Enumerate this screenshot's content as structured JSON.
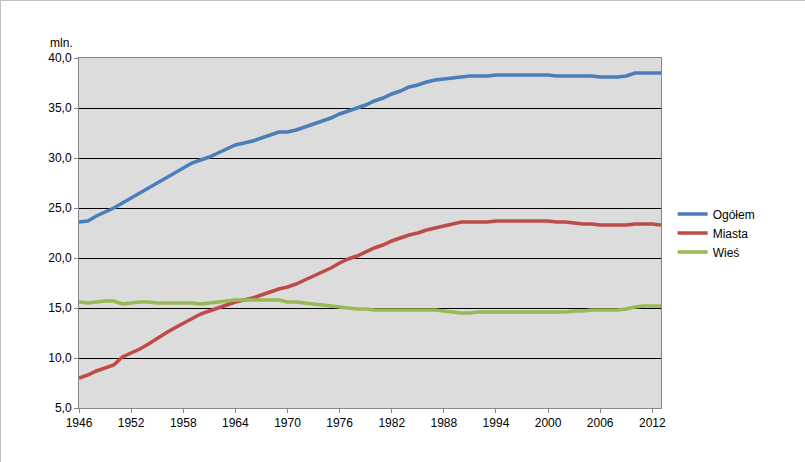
{
  "chart_data": {
    "type": "line",
    "ylabel": "mln.",
    "x": [
      1946,
      1947,
      1948,
      1949,
      1950,
      1951,
      1952,
      1953,
      1954,
      1955,
      1956,
      1957,
      1958,
      1959,
      1960,
      1961,
      1962,
      1963,
      1964,
      1965,
      1966,
      1967,
      1968,
      1969,
      1970,
      1971,
      1972,
      1973,
      1974,
      1975,
      1976,
      1977,
      1978,
      1979,
      1980,
      1981,
      1982,
      1983,
      1984,
      1985,
      1986,
      1987,
      1988,
      1989,
      1990,
      1991,
      1992,
      1993,
      1994,
      1995,
      1996,
      1997,
      1998,
      1999,
      2000,
      2001,
      2002,
      2003,
      2004,
      2005,
      2006,
      2007,
      2008,
      2009,
      2010,
      2011,
      2012,
      2013
    ],
    "series": [
      {
        "name": "Ogółem",
        "color": "#4a7ebb",
        "values": [
          23.6,
          23.7,
          24.2,
          24.6,
          25.0,
          25.5,
          26.0,
          26.5,
          27.0,
          27.5,
          28.1,
          28.5,
          29.0,
          29.5,
          29.8,
          30.1,
          30.5,
          30.9,
          31.3,
          31.5,
          31.7,
          32.0,
          32.3,
          32.6,
          32.6,
          32.8,
          33.1,
          33.4,
          33.7,
          34.0,
          34.4,
          34.7,
          35.0,
          35.3,
          35.7,
          36.0,
          36.4,
          36.7,
          37.1,
          37.3,
          37.6,
          37.8,
          37.9,
          38.0,
          38.1,
          38.2,
          38.2,
          38.2,
          38.3,
          38.3,
          38.3,
          38.3,
          38.3,
          38.3,
          38.3,
          38.2,
          38.2,
          38.2,
          38.2,
          38.2,
          38.1,
          38.1,
          38.1,
          38.2,
          38.5,
          38.5,
          38.5,
          38.5
        ]
      },
      {
        "name": "Miasta",
        "color": "#be4b48",
        "values": [
          8.0,
          8.3,
          8.7,
          9.0,
          9.3,
          10.1,
          10.5,
          10.9,
          11.4,
          12.0,
          12.5,
          13.0,
          13.5,
          14.0,
          14.4,
          14.7,
          15.0,
          15.3,
          15.6,
          15.8,
          16.0,
          16.3,
          16.6,
          16.9,
          17.1,
          17.4,
          17.8,
          18.2,
          18.6,
          19.0,
          19.5,
          19.9,
          20.2,
          20.6,
          21.0,
          21.3,
          21.7,
          22.0,
          22.3,
          22.5,
          22.8,
          23.0,
          23.2,
          23.4,
          23.6,
          23.6,
          23.6,
          23.6,
          23.7,
          23.7,
          23.7,
          23.7,
          23.7,
          23.7,
          23.7,
          23.6,
          23.6,
          23.5,
          23.4,
          23.4,
          23.3,
          23.3,
          23.3,
          23.3,
          23.4,
          23.4,
          23.4,
          23.3
        ]
      },
      {
        "name": "Wieś",
        "color": "#98b954",
        "values": [
          15.6,
          15.5,
          15.6,
          15.7,
          15.7,
          15.4,
          15.5,
          15.6,
          15.6,
          15.5,
          15.5,
          15.5,
          15.5,
          15.5,
          15.4,
          15.5,
          15.6,
          15.7,
          15.8,
          15.8,
          15.8,
          15.8,
          15.8,
          15.8,
          15.6,
          15.6,
          15.5,
          15.4,
          15.3,
          15.2,
          15.1,
          15.0,
          14.9,
          14.9,
          14.8,
          14.8,
          14.8,
          14.8,
          14.8,
          14.8,
          14.8,
          14.8,
          14.7,
          14.6,
          14.5,
          14.5,
          14.6,
          14.6,
          14.6,
          14.6,
          14.6,
          14.6,
          14.6,
          14.6,
          14.6,
          14.6,
          14.6,
          14.7,
          14.7,
          14.8,
          14.8,
          14.8,
          14.8,
          14.9,
          15.1,
          15.2,
          15.2,
          15.2
        ]
      }
    ],
    "xlim": [
      1946,
      2013
    ],
    "xticks": [
      1946,
      1952,
      1958,
      1964,
      1970,
      1976,
      1982,
      1988,
      1994,
      2000,
      2006,
      2012
    ],
    "ylim": [
      5,
      40
    ],
    "yticks": [
      {
        "value": 5,
        "label": "5,0"
      },
      {
        "value": 10,
        "label": "10,0"
      },
      {
        "value": 15,
        "label": "15,0"
      },
      {
        "value": 20,
        "label": "20,0"
      },
      {
        "value": 25,
        "label": "25,0"
      },
      {
        "value": 30,
        "label": "30,0"
      },
      {
        "value": 35,
        "label": "35,0"
      },
      {
        "value": 40,
        "label": "40,0"
      }
    ],
    "grid": true,
    "legend": "right"
  }
}
